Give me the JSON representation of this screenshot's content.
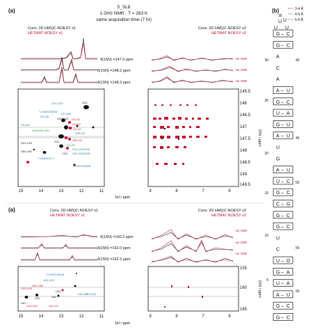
{
  "panel_a_label": "(a)",
  "panel_b_label": "(b)",
  "header": {
    "line1": "5_SL8",
    "line2": "1 GHz NMR , T = 283 K",
    "line3": "same acquisition time (7 hr)"
  },
  "top": {
    "left_title_black": "Conv. 2D HMQC-NOESY x1",
    "left_title_red": "HETMAT NOESY x1",
    "right_title_black": "Conv. 2D HMQC-NOESY x2",
    "right_title_red": "HETMAT NOESY x2",
    "slices": [
      "δ(15N) =147.0 ppm",
      "δ(15N) =148.2 ppm",
      "δ(15N) =148.3 ppm"
    ],
    "snr": [
      "~2x SNR",
      "~2x SNR",
      "~3x SNR"
    ],
    "y_ticks": [
      "145.5",
      "146",
      "146.5",
      "147",
      "147.5",
      "148",
      "148.5",
      "149",
      "149.5"
    ],
    "y_label": "15N / ppm",
    "x_ticks_left": [
      "15",
      "14",
      "13",
      "12",
      "11"
    ],
    "x_ticks_right": [
      "9",
      "8",
      "7",
      "6"
    ],
    "x_label": "1H / ppm",
    "labels_black": [
      "G24",
      "G2-H1",
      "G21-U22",
      "G60-U61",
      "G30/G31",
      "G39/G30",
      "G30/G39/G31",
      "G21",
      "G31",
      "G39/G30/G31"
    ],
    "labels_blue": [
      "G24-G23",
      "T-G30/G39/G6",
      "G2-G6",
      "G2-G60",
      "G30-G2",
      "G31-G30/G39",
      "T-G39/G31-T",
      "T-G30/G39/G6"
    ],
    "labels_green": [
      "G2-y61",
      "G30/G39-G31",
      "G2-G24",
      "G1-G2",
      "G31-G30/G39"
    ],
    "labels_red": [
      "G2-G1",
      "G1-G2",
      "G1-D7",
      "G60-G2"
    ]
  },
  "bottom": {
    "left_title_black": "Conv. 2D HMQC-NOESY x1",
    "left_title_red": "HETMAT NOESY x1",
    "right_title_black": "Conv. 2D HMQC-NOESY x2",
    "right_title_red": "HETMAT NOESY x2",
    "slices": [
      "δ(15N) =160.2 ppm",
      "δ(15N) =162.0 ppm",
      "δ(15N) =162.3 ppm"
    ],
    "snr": [
      "~2x SNR",
      "~2x SNR",
      "~2x SNR"
    ],
    "y_ticks": [
      "155",
      "160",
      "165"
    ],
    "y_label": "15N / ppm",
    "x_ticks_left": [
      "15",
      "14",
      "13",
      "12",
      "11"
    ],
    "x_ticks_right": [
      "9",
      "8",
      "7",
      "6"
    ],
    "x_label": "1H / ppm",
    "labels_black": [
      "U61",
      "U22",
      "U62",
      "U23",
      "U61-G2"
    ],
    "labels_blue": [
      "T-G30/G39/G6",
      "U61-U22",
      "U23-G24"
    ],
    "labels_red": [
      "U22-U23",
      "U23-U22",
      "U61-G60",
      "U61-G2"
    ],
    "labels_green": [
      "U61-G2"
    ]
  },
  "legend": {
    "items": [
      "3-4 Å",
      "4-5 Å",
      "5-6 Å"
    ]
  },
  "sequence": {
    "loop_top": "35",
    "loop": [
      "U",
      "U"
    ],
    "loop_mid": [
      "U",
      "U"
    ],
    "pairs": [
      [
        "G",
        "C"
      ],
      [
        "G",
        "C"
      ],
      [
        "A",
        ""
      ],
      [
        "C",
        ""
      ],
      [
        "A",
        ""
      ],
      [
        "A",
        "U"
      ],
      [
        "G",
        "C"
      ],
      [
        "U",
        "A"
      ],
      [
        "G",
        "U"
      ],
      [
        "A",
        "U"
      ],
      [
        "U",
        ""
      ],
      [
        "G",
        ""
      ],
      [
        "A",
        "U"
      ],
      [
        "U",
        "C"
      ],
      [
        "G",
        "C"
      ],
      [
        "C",
        "G"
      ],
      [
        "G",
        "C"
      ],
      [
        "G",
        "C"
      ],
      [
        "U",
        ""
      ],
      [
        "C",
        ""
      ],
      [
        "U",
        "G"
      ],
      [
        "G",
        "A"
      ],
      [
        "U",
        "A"
      ],
      [
        "A",
        "U"
      ],
      [
        "G",
        "C"
      ],
      [
        "G",
        "C"
      ]
    ],
    "numbers_left": [
      "30",
      "25",
      "20",
      "15",
      "10",
      "5"
    ],
    "numbers_right": [
      "40",
      "45",
      "50",
      "55",
      "60"
    ]
  }
}
